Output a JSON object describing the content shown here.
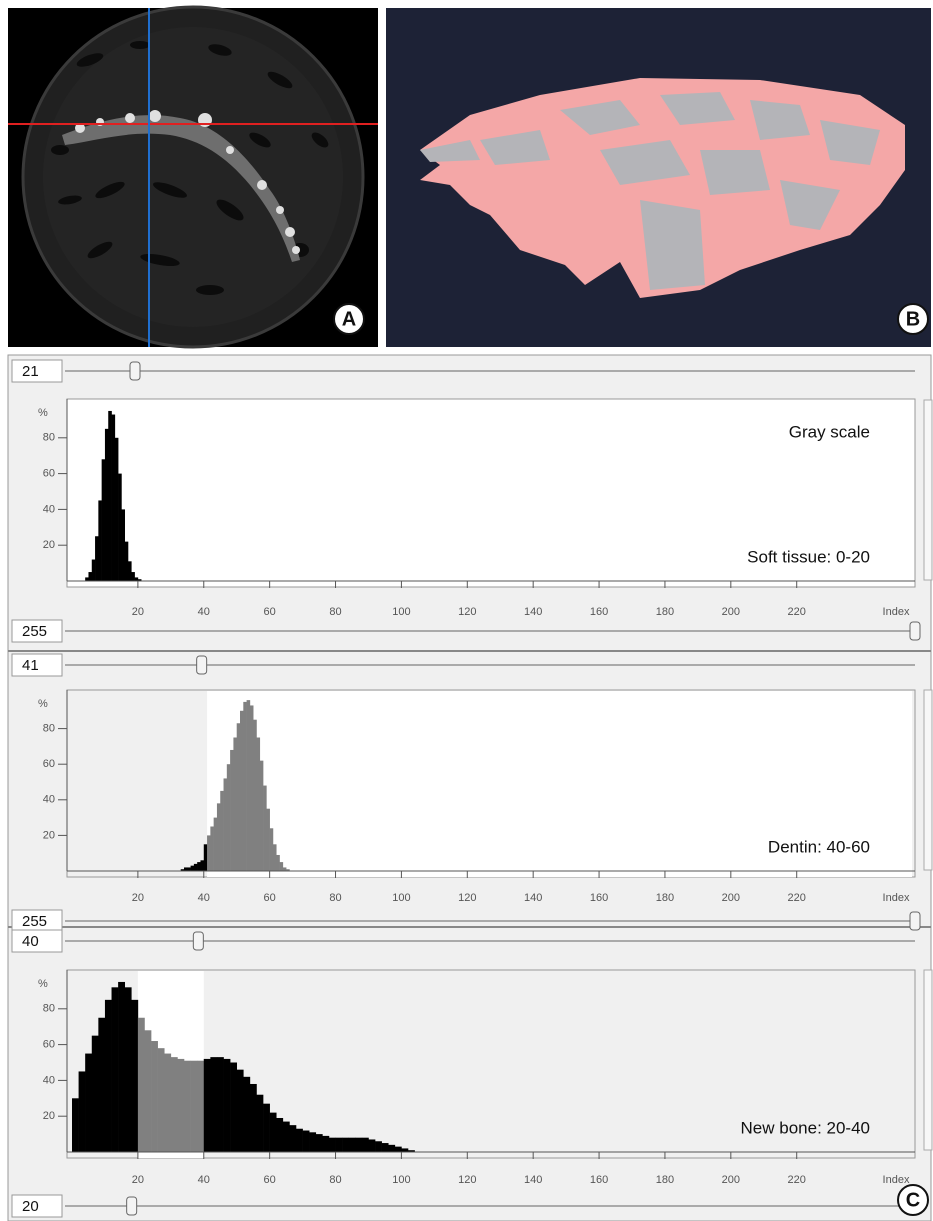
{
  "panel_labels": [
    "A",
    "B",
    "C"
  ],
  "chart_data": [
    {
      "type": "histogram",
      "slider_top": 21,
      "slider_bottom": 255,
      "shade_outside": false,
      "ylabel": "%",
      "xlabel": "Index",
      "annotations": [
        "Gray scale",
        "Soft tissue: 0-20"
      ],
      "xlim": [
        0,
        255
      ],
      "ylim": [
        0,
        100
      ],
      "xticks": [
        20,
        40,
        60,
        80,
        100,
        120,
        140,
        160,
        180,
        200,
        220
      ],
      "yticks": [
        20,
        40,
        60,
        80
      ],
      "color": "#000000",
      "highlight_color": "#808080",
      "bins": [
        4,
        5,
        6,
        7,
        8,
        9,
        10,
        11,
        12,
        13,
        14,
        15,
        16,
        17,
        18,
        19,
        20,
        21
      ],
      "values": [
        2,
        5,
        12,
        25,
        45,
        68,
        85,
        95,
        93,
        80,
        60,
        40,
        22,
        11,
        5,
        2,
        1
      ]
    },
    {
      "type": "histogram",
      "slider_top": 41,
      "slider_bottom": 255,
      "shade_outside": true,
      "ylabel": "%",
      "xlabel": "Index",
      "annotations": [
        "Dentin: 40-60"
      ],
      "xlim": [
        0,
        255
      ],
      "ylim": [
        0,
        100
      ],
      "xticks": [
        20,
        40,
        60,
        80,
        100,
        120,
        140,
        160,
        180,
        200,
        220
      ],
      "yticks": [
        20,
        40,
        60,
        80
      ],
      "color": "#000000",
      "highlight_color": "#808080",
      "bins": [
        33,
        34,
        35,
        36,
        37,
        38,
        39,
        40,
        41,
        42,
        43,
        44,
        45,
        46,
        47,
        48,
        49,
        50,
        51,
        52,
        53,
        54,
        55,
        56,
        57,
        58,
        59,
        60,
        61,
        62,
        63,
        64,
        65,
        66
      ],
      "values": [
        1,
        2,
        2,
        3,
        4,
        5,
        6,
        15,
        20,
        25,
        30,
        38,
        45,
        52,
        60,
        68,
        75,
        83,
        90,
        95,
        96,
        93,
        85,
        75,
        62,
        48,
        35,
        24,
        15,
        9,
        5,
        2,
        1
      ]
    },
    {
      "type": "histogram",
      "slider_top": 40,
      "slider_bottom": 20,
      "shade_outside": true,
      "ylabel": "%",
      "xlabel": "Index",
      "annotations": [
        "New bone: 20-40"
      ],
      "xlim": [
        0,
        255
      ],
      "ylim": [
        0,
        100
      ],
      "xticks": [
        20,
        40,
        60,
        80,
        100,
        120,
        140,
        160,
        180,
        200,
        220
      ],
      "yticks": [
        20,
        40,
        60,
        80
      ],
      "color": "#000000",
      "highlight_color": "#808080",
      "bins": [
        0,
        2,
        4,
        6,
        8,
        10,
        12,
        14,
        16,
        18,
        20,
        22,
        24,
        26,
        28,
        30,
        32,
        34,
        36,
        38,
        40,
        42,
        44,
        46,
        48,
        50,
        52,
        54,
        56,
        58,
        60,
        62,
        64,
        66,
        68,
        70,
        72,
        74,
        76,
        78,
        80,
        82,
        84,
        86,
        88,
        90,
        92,
        94,
        96,
        98,
        100,
        102,
        104
      ],
      "values": [
        30,
        45,
        55,
        65,
        75,
        85,
        92,
        95,
        92,
        85,
        75,
        68,
        62,
        58,
        55,
        53,
        52,
        51,
        51,
        51,
        52,
        53,
        53,
        52,
        50,
        46,
        42,
        38,
        32,
        27,
        22,
        19,
        17,
        15,
        13,
        12,
        11,
        10,
        9,
        8,
        8,
        8,
        8,
        8,
        8,
        7,
        6,
        5,
        4,
        3,
        2,
        1
      ]
    }
  ]
}
